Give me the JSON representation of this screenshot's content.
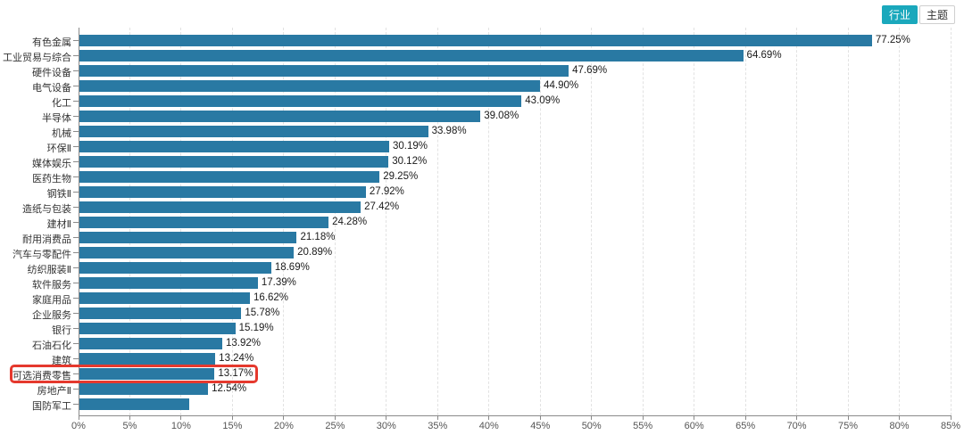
{
  "toolbar": {
    "industry_label": "行业",
    "theme_label": "主题",
    "active_bg": "#1aa8bc",
    "active_text": "#ffffff"
  },
  "chart_data": {
    "type": "bar",
    "orientation": "horizontal",
    "title": "",
    "categories": [
      "有色金属",
      "工业贸易与综合",
      "硬件设备",
      "电气设备",
      "化工",
      "半导体",
      "机械",
      "环保Ⅱ",
      "媒体娱乐",
      "医药生物",
      "钢铁Ⅱ",
      "造纸与包装",
      "建材Ⅱ",
      "耐用消费品",
      "汽车与零配件",
      "纺织服装Ⅱ",
      "软件服务",
      "家庭用品",
      "企业服务",
      "银行",
      "石油石化",
      "建筑",
      "可选消费零售",
      "房地产Ⅱ",
      "国防军工"
    ],
    "values": [
      77.25,
      64.69,
      47.69,
      44.9,
      43.09,
      39.08,
      33.98,
      30.19,
      30.12,
      29.25,
      27.92,
      27.42,
      24.28,
      21.18,
      20.89,
      18.69,
      17.39,
      16.62,
      15.78,
      15.19,
      13.92,
      13.24,
      13.17,
      12.54,
      10.7
    ],
    "value_labels": [
      "77.25%",
      "64.69%",
      "47.69%",
      "44.90%",
      "43.09%",
      "39.08%",
      "33.98%",
      "30.19%",
      "30.12%",
      "29.25%",
      "27.92%",
      "27.42%",
      "24.28%",
      "21.18%",
      "20.89%",
      "18.69%",
      "17.39%",
      "16.62%",
      "15.78%",
      "15.19%",
      "13.92%",
      "13.24%",
      "13.17%",
      "12.54%",
      ""
    ],
    "highlight_category": "可选消费零售",
    "xlim": [
      0,
      85
    ],
    "x_tick_labels": [
      "0%",
      "5%",
      "10%",
      "15%",
      "20%",
      "25%",
      "30%",
      "35%",
      "40%",
      "45%",
      "50%",
      "55%",
      "60%",
      "65%",
      "70%",
      "75%",
      "80%",
      "85%"
    ],
    "grid": "dashed-vertical",
    "legend_position": "none",
    "bar_color": "#2979a3",
    "highlight_box_color": "#e5392e",
    "axis_color": "#8a8a8a",
    "category_label_color": "#333333",
    "value_label_color": "#1a1a1a",
    "tick_label_color": "#555555"
  }
}
